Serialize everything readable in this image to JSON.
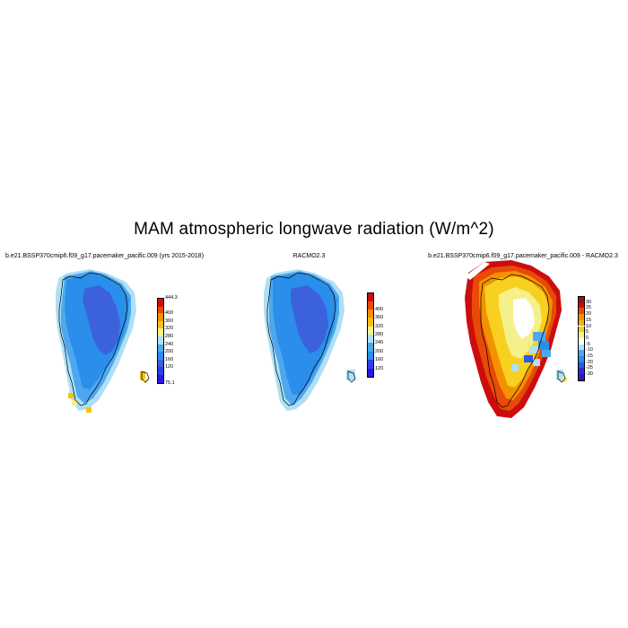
{
  "title": "MAM atmospheric longwave radiation (W/m^2)",
  "panels": [
    {
      "title": "b.e21.BSSP370cmip6.f09_g17.pacemaker_pacific.009 (yrs 2015-2018)",
      "colors": [
        "#2b16e0",
        "#2f3fe6",
        "#3b62dc",
        "#2a8eea",
        "#4ea8f0",
        "#aee0f5",
        "#f6f08a",
        "#f8c010",
        "#f39200",
        "#e84a08",
        "#cc0d0d"
      ],
      "labels": [
        "75.1",
        "120",
        "160",
        "200",
        "240",
        "280",
        "320",
        "360",
        "400",
        "444.3"
      ]
    },
    {
      "title": "RACMO2.3",
      "colors": [
        "#2b16e0",
        "#2f3fe6",
        "#2a8eea",
        "#4ea8f0",
        "#aee0f5",
        "#f6f08a",
        "#f8c010",
        "#f39200",
        "#e84a08",
        "#cc0d0d"
      ],
      "labels": [
        "120",
        "160",
        "200",
        "240",
        "280",
        "320",
        "360",
        "400"
      ]
    },
    {
      "title": "b.e21.BSSP370cmip6.f09_g17.pacemaker_pacific.009 - RACMO2.3",
      "colors": [
        "#3a10c8",
        "#2b2ee0",
        "#2a5ae6",
        "#2a8eea",
        "#4ea8f0",
        "#aee0f5",
        "#ffffff",
        "#f6f08a",
        "#f8d020",
        "#f8b010",
        "#f39200",
        "#e84a08",
        "#cc0d0d",
        "#a80d0d"
      ],
      "labels": [
        "-30",
        "-25",
        "-20",
        "-15",
        "-10",
        "-5",
        "0",
        "5",
        "10",
        "15",
        "20",
        "25",
        "30"
      ]
    }
  ]
}
